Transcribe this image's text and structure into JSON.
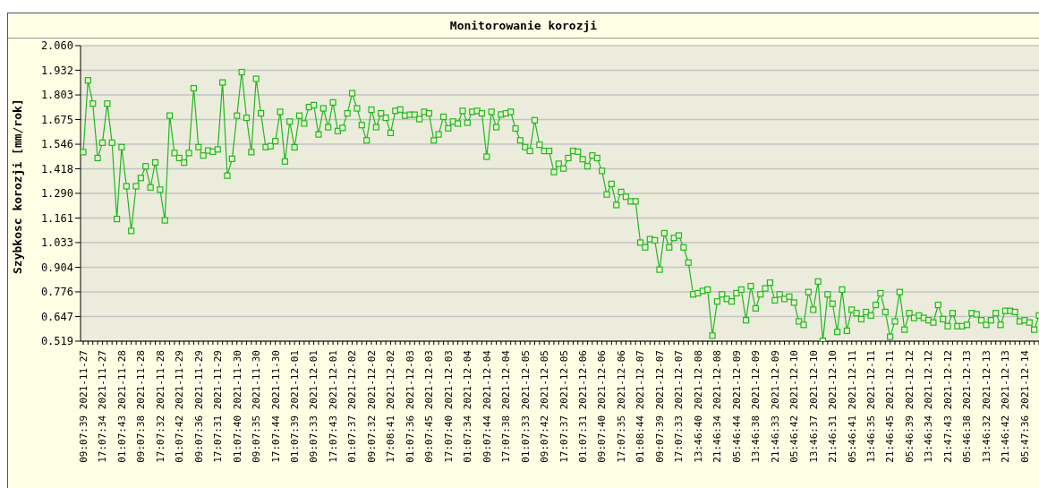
{
  "chart_data": {
    "type": "line",
    "title": "Monitorowanie korozji",
    "ylabel": "Szybkosc korozji [mm/rok]",
    "categories": [
      "09:07:39 2021-11-27",
      null,
      null,
      null,
      "17:07:34 2021-11-27",
      null,
      null,
      null,
      "01:07:43 2021-11-28",
      null,
      null,
      null,
      "09:07:38 2021-11-28",
      null,
      null,
      null,
      "17:07:32 2021-11-28",
      null,
      null,
      null,
      "01:07:42 2021-11-29",
      null,
      null,
      null,
      "09:07:36 2021-11-29",
      null,
      null,
      null,
      "17:07:31 2021-11-29",
      null,
      null,
      null,
      "01:07:40 2021-11-30",
      null,
      null,
      null,
      "09:07:35 2021-11-30",
      null,
      null,
      null,
      "17:07:44 2021-11-30",
      null,
      null,
      null,
      "01:07:39 2021-12-01",
      null,
      null,
      null,
      "09:07:33 2021-12-01",
      null,
      null,
      null,
      "17:07:43 2021-12-01",
      null,
      null,
      null,
      "01:07:37 2021-12-02",
      null,
      null,
      null,
      "09:07:32 2021-12-02",
      null,
      null,
      null,
      "17:08:41 2021-12-02",
      null,
      null,
      null,
      "01:07:36 2021-12-03",
      null,
      null,
      null,
      "09:07:45 2021-12-03",
      null,
      null,
      null,
      "17:07:40 2021-12-03",
      null,
      null,
      null,
      "01:07:34 2021-12-04",
      null,
      null,
      null,
      "09:07:44 2021-12-04",
      null,
      null,
      null,
      "17:07:38 2021-12-04",
      null,
      null,
      null,
      "01:07:33 2021-12-05",
      null,
      null,
      null,
      "09:07:42 2021-12-05",
      null,
      null,
      null,
      "17:07:37 2021-12-05",
      null,
      null,
      null,
      "01:07:31 2021-12-06",
      null,
      null,
      null,
      "09:07:40 2021-12-06",
      null,
      null,
      null,
      "17:07:35 2021-12-06",
      null,
      null,
      null,
      "01:08:44 2021-12-07",
      null,
      null,
      null,
      "09:07:39 2021-12-07",
      null,
      null,
      null,
      "17:07:33 2021-12-07",
      null,
      null,
      null,
      "13:46:40 2021-12-08",
      null,
      null,
      null,
      "21:46:34 2021-12-08",
      null,
      null,
      null,
      "05:46:44 2021-12-09",
      null,
      null,
      null,
      "13:46:38 2021-12-09",
      null,
      null,
      null,
      "21:46:33 2021-12-09",
      null,
      null,
      null,
      "05:46:42 2021-12-10",
      null,
      null,
      null,
      "13:46:37 2021-12-10",
      null,
      null,
      null,
      "21:46:31 2021-12-10",
      null,
      null,
      null,
      "05:46:41 2021-12-11",
      null,
      null,
      null,
      "13:46:35 2021-12-11",
      null,
      null,
      null,
      "21:46:45 2021-12-11",
      null,
      null,
      null,
      "05:46:39 2021-12-12",
      null,
      null,
      null,
      "13:46:34 2021-12-12",
      null,
      null,
      null,
      "21:47:43 2021-12-12",
      null,
      null,
      null,
      "05:46:38 2021-12-13",
      null,
      null,
      null,
      "13:46:32 2021-12-13",
      null,
      null,
      null,
      "21:46:42 2021-12-13",
      null,
      null,
      null,
      "05:47:36 2021-12-14",
      null,
      null,
      null
    ],
    "series": [
      {
        "color": "#22b622",
        "values": [
          1.505,
          1.879,
          1.758,
          1.474,
          1.554,
          1.758,
          1.554,
          1.156,
          1.531,
          1.327,
          1.094,
          1.327,
          1.37,
          1.431,
          1.321,
          1.451,
          1.309,
          1.149,
          1.695,
          1.5,
          1.474,
          1.45,
          1.5,
          1.838,
          1.531,
          1.487,
          1.513,
          1.507,
          1.519,
          1.868,
          1.382,
          1.47,
          1.695,
          1.922,
          1.684,
          1.505,
          1.887,
          1.707,
          1.531,
          1.536,
          1.562,
          1.715,
          1.456,
          1.664,
          1.53,
          1.695,
          1.654,
          1.74,
          1.75,
          1.597,
          1.733,
          1.635,
          1.764,
          1.615,
          1.631,
          1.707,
          1.812,
          1.733,
          1.646,
          1.566,
          1.726,
          1.635,
          1.707,
          1.684,
          1.605,
          1.72,
          1.727,
          1.695,
          1.7,
          1.7,
          1.677,
          1.715,
          1.707,
          1.566,
          1.597,
          1.689,
          1.629,
          1.664,
          1.654,
          1.72,
          1.658,
          1.715,
          1.72,
          1.707,
          1.481,
          1.715,
          1.635,
          1.701,
          1.707,
          1.715,
          1.628,
          1.566,
          1.531,
          1.511,
          1.671,
          1.543,
          1.511,
          1.511,
          1.401,
          1.444,
          1.419,
          1.474,
          1.511,
          1.507,
          1.468,
          1.431,
          1.487,
          1.474,
          1.407,
          1.284,
          1.339,
          1.229,
          1.297,
          1.272,
          1.248,
          1.248,
          1.033,
          1.008,
          1.051,
          1.045,
          0.892,
          1.082,
          1.008,
          1.057,
          1.07,
          1.008,
          0.929,
          0.763,
          0.769,
          0.781,
          0.788,
          0.548,
          0.726,
          0.763,
          0.739,
          0.726,
          0.769,
          0.788,
          0.628,
          0.806,
          0.69,
          0.763,
          0.794,
          0.824,
          0.732,
          0.763,
          0.739,
          0.751,
          0.72,
          0.622,
          0.604,
          0.775,
          0.683,
          0.83,
          0.521,
          0.763,
          0.714,
          0.567,
          0.788,
          0.573,
          0.683,
          0.665,
          0.634,
          0.671,
          0.653,
          0.708,
          0.769,
          0.671,
          0.542,
          0.622,
          0.775,
          0.579,
          0.665,
          0.64,
          0.653,
          0.64,
          0.628,
          0.616,
          0.708,
          0.634,
          0.597,
          0.665,
          0.597,
          0.597,
          0.604,
          0.665,
          0.659,
          0.628,
          0.604,
          0.628,
          0.665,
          0.604,
          0.677,
          0.677,
          0.671,
          0.622,
          0.628,
          0.616,
          0.579,
          0.653
        ]
      }
    ],
    "ylim": [
      0.519,
      2.06
    ],
    "yticks": [
      0.519,
      0.647,
      0.776,
      0.904,
      1.033,
      1.161,
      {
        "value": 1.29,
        "label": "1.290"
      },
      1.418,
      1.546,
      1.675,
      1.803,
      1.932,
      {
        "value": 2.06,
        "label": "2.060"
      }
    ],
    "grid": "y",
    "marker": "square",
    "line_style": "solid",
    "legend": false
  }
}
